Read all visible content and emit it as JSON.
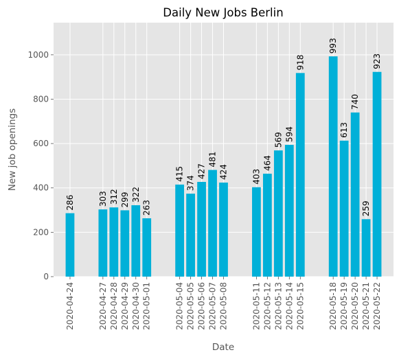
{
  "chart_data": {
    "type": "bar",
    "title": "Daily New Jobs Berlin",
    "xlabel": "Date",
    "ylabel": "New job openings",
    "ylim": [
      0,
      1145
    ],
    "yticks": [
      0,
      200,
      400,
      600,
      800,
      1000
    ],
    "grid": true,
    "bar_color": "#00b0d8",
    "background_color": "#e5e5e5",
    "x": [
      "2020-04-24",
      "2020-04-27",
      "2020-04-28",
      "2020-04-29",
      "2020-04-30",
      "2020-05-01",
      "2020-05-04",
      "2020-05-05",
      "2020-05-06",
      "2020-05-07",
      "2020-05-08",
      "2020-05-11",
      "2020-05-12",
      "2020-05-13",
      "2020-05-14",
      "2020-05-15",
      "2020-05-18",
      "2020-05-19",
      "2020-05-20",
      "2020-05-21",
      "2020-05-22"
    ],
    "values": [
      286,
      303,
      312,
      299,
      322,
      263,
      415,
      374,
      427,
      481,
      424,
      403,
      464,
      569,
      594,
      918,
      993,
      613,
      740,
      259,
      923
    ]
  }
}
